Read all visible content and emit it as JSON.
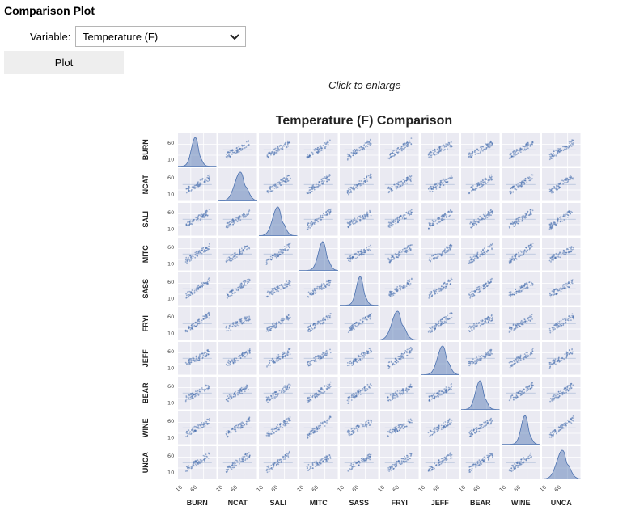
{
  "page": {
    "title": "Comparison Plot"
  },
  "controls": {
    "variable_label": "Variable:",
    "variable_value": "Temperature (F)",
    "plot_button": "Plot",
    "hint": "Click to enlarge"
  },
  "colors": {
    "points": "#4c72b0",
    "panel": "#eaeaf2",
    "button": "#eeeeee"
  },
  "chart_data": {
    "type": "scatter",
    "title": "Temperature (F) Comparison",
    "variables": [
      "BURN",
      "NCAT",
      "SALI",
      "MITC",
      "SASS",
      "FRYI",
      "JEFF",
      "BEAR",
      "WINE",
      "UNCA"
    ],
    "tick_labels": [
      "10",
      "60"
    ],
    "diagonal": "density",
    "off_diagonal": "scatter",
    "grid": true
  }
}
